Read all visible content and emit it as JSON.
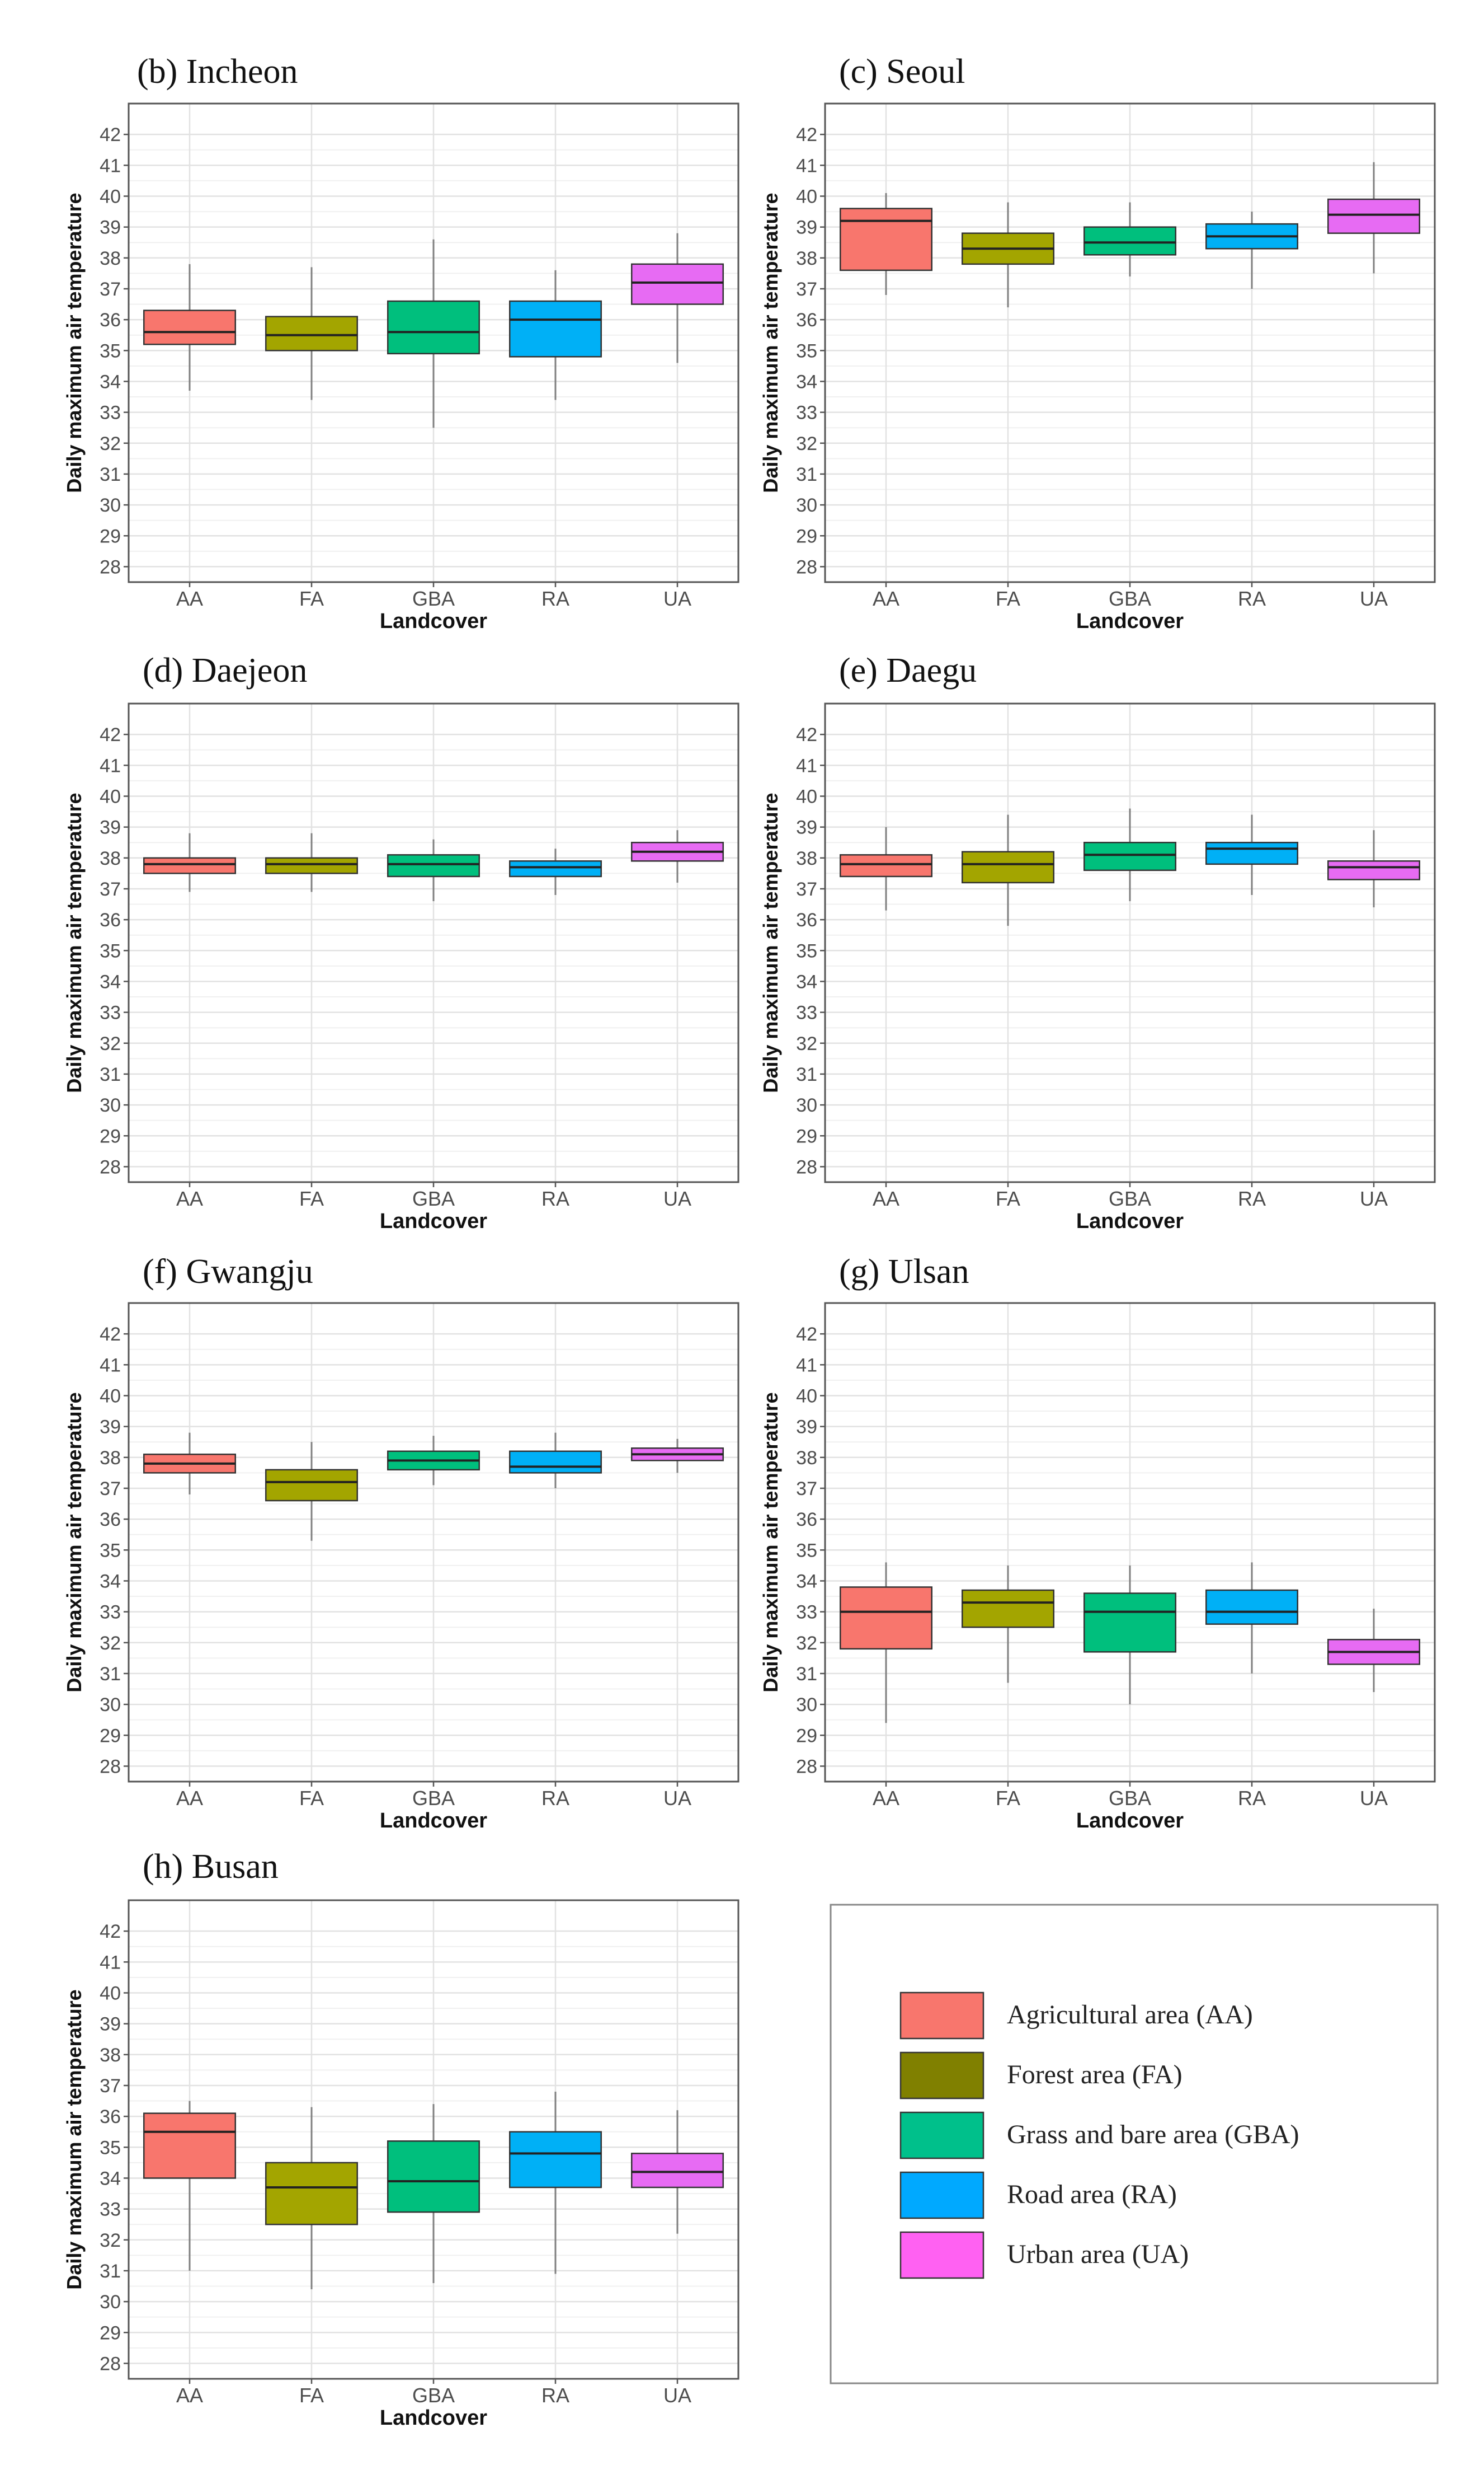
{
  "y_axis": {
    "label": "Daily maximum air temperature",
    "ticks": [
      28,
      29,
      30,
      31,
      32,
      33,
      34,
      35,
      36,
      37,
      38,
      39,
      40,
      41,
      42
    ]
  },
  "x_axis": {
    "label": "Landcover"
  },
  "legend": {
    "items": [
      {
        "key": "AA",
        "label": "Agricultural area (AA)",
        "color": "#F8766D"
      },
      {
        "key": "FA",
        "label": "Forest area (FA)",
        "color": "#808000"
      },
      {
        "key": "GBA",
        "label": "Grass and bare area (GBA)",
        "color": "#00C08B"
      },
      {
        "key": "RA",
        "label": "Road area (RA)",
        "color": "#00A9FF"
      },
      {
        "key": "UA",
        "label": "Urban area (UA)",
        "color": "#FF61F2"
      }
    ]
  },
  "colors": {
    "AA": "#F8766D",
    "FA": "#A3A500",
    "GBA": "#00BF7D",
    "RA": "#00B0F6",
    "UA": "#E76BF3"
  },
  "chart_data": [
    {
      "type": "boxplot",
      "panel": "(b) Incheon",
      "categories": [
        "AA",
        "FA",
        "GBA",
        "RA",
        "UA"
      ],
      "ylim": [
        27.5,
        43
      ],
      "xlabel": "Landcover",
      "ylabel": "Daily maximum air temperature",
      "boxes": [
        {
          "category": "AA",
          "min": 33.7,
          "q1": 35.2,
          "median": 35.6,
          "q3": 36.3,
          "max": 37.8
        },
        {
          "category": "FA",
          "min": 33.4,
          "q1": 35.0,
          "median": 35.5,
          "q3": 36.1,
          "max": 37.7
        },
        {
          "category": "GBA",
          "min": 32.5,
          "q1": 34.9,
          "median": 35.6,
          "q3": 36.6,
          "max": 38.6
        },
        {
          "category": "RA",
          "min": 33.4,
          "q1": 34.8,
          "median": 36.0,
          "q3": 36.6,
          "max": 37.6
        },
        {
          "category": "UA",
          "min": 34.6,
          "q1": 36.5,
          "median": 37.2,
          "q3": 37.8,
          "max": 38.8
        }
      ]
    },
    {
      "type": "boxplot",
      "panel": "(c) Seoul",
      "categories": [
        "AA",
        "FA",
        "GBA",
        "RA",
        "UA"
      ],
      "ylim": [
        27.5,
        43
      ],
      "xlabel": "Landcover",
      "ylabel": "Daily maximum air temperature",
      "boxes": [
        {
          "category": "AA",
          "min": 36.8,
          "q1": 37.6,
          "median": 39.2,
          "q3": 39.6,
          "max": 40.1
        },
        {
          "category": "FA",
          "min": 36.4,
          "q1": 37.8,
          "median": 38.3,
          "q3": 38.8,
          "max": 39.8
        },
        {
          "category": "GBA",
          "min": 37.4,
          "q1": 38.1,
          "median": 38.5,
          "q3": 39.0,
          "max": 39.8
        },
        {
          "category": "RA",
          "min": 37.0,
          "q1": 38.3,
          "median": 38.7,
          "q3": 39.1,
          "max": 39.5
        },
        {
          "category": "UA",
          "min": 37.5,
          "q1": 38.8,
          "median": 39.4,
          "q3": 39.9,
          "max": 41.1
        }
      ]
    },
    {
      "type": "boxplot",
      "panel": "(d) Daejeon",
      "categories": [
        "AA",
        "FA",
        "GBA",
        "RA",
        "UA"
      ],
      "ylim": [
        27.5,
        43
      ],
      "xlabel": "Landcover",
      "ylabel": "Daily maximum air temperature",
      "boxes": [
        {
          "category": "AA",
          "min": 36.9,
          "q1": 37.5,
          "median": 37.8,
          "q3": 38.0,
          "max": 38.8
        },
        {
          "category": "FA",
          "min": 36.9,
          "q1": 37.5,
          "median": 37.8,
          "q3": 38.0,
          "max": 38.8
        },
        {
          "category": "GBA",
          "min": 36.6,
          "q1": 37.4,
          "median": 37.8,
          "q3": 38.1,
          "max": 38.6
        },
        {
          "category": "RA",
          "min": 36.8,
          "q1": 37.4,
          "median": 37.7,
          "q3": 37.9,
          "max": 38.3
        },
        {
          "category": "UA",
          "min": 37.2,
          "q1": 37.9,
          "median": 38.2,
          "q3": 38.5,
          "max": 38.9
        }
      ]
    },
    {
      "type": "boxplot",
      "panel": "(e) Daegu",
      "categories": [
        "AA",
        "FA",
        "GBA",
        "RA",
        "UA"
      ],
      "ylim": [
        27.5,
        43
      ],
      "xlabel": "Landcover",
      "ylabel": "Daily maximum air temperature",
      "boxes": [
        {
          "category": "AA",
          "min": 36.3,
          "q1": 37.4,
          "median": 37.8,
          "q3": 38.1,
          "max": 39.0
        },
        {
          "category": "FA",
          "min": 35.8,
          "q1": 37.2,
          "median": 37.8,
          "q3": 38.2,
          "max": 39.4
        },
        {
          "category": "GBA",
          "min": 36.6,
          "q1": 37.6,
          "median": 38.1,
          "q3": 38.5,
          "max": 39.6
        },
        {
          "category": "RA",
          "min": 36.8,
          "q1": 37.8,
          "median": 38.3,
          "q3": 38.5,
          "max": 39.4
        },
        {
          "category": "UA",
          "min": 36.4,
          "q1": 37.3,
          "median": 37.7,
          "q3": 37.9,
          "max": 38.9
        }
      ]
    },
    {
      "type": "boxplot",
      "panel": "(f) Gwangju",
      "categories": [
        "AA",
        "FA",
        "GBA",
        "RA",
        "UA"
      ],
      "ylim": [
        27.5,
        43
      ],
      "xlabel": "Landcover",
      "ylabel": "Daily maximum air temperature",
      "boxes": [
        {
          "category": "AA",
          "min": 36.8,
          "q1": 37.5,
          "median": 37.8,
          "q3": 38.1,
          "max": 38.8
        },
        {
          "category": "FA",
          "min": 35.3,
          "q1": 36.6,
          "median": 37.2,
          "q3": 37.6,
          "max": 38.5
        },
        {
          "category": "GBA",
          "min": 37.1,
          "q1": 37.6,
          "median": 37.9,
          "q3": 38.2,
          "max": 38.7
        },
        {
          "category": "RA",
          "min": 37.0,
          "q1": 37.5,
          "median": 37.7,
          "q3": 38.2,
          "max": 38.8
        },
        {
          "category": "UA",
          "min": 37.5,
          "q1": 37.9,
          "median": 38.1,
          "q3": 38.3,
          "max": 38.6
        }
      ]
    },
    {
      "type": "boxplot",
      "panel": "(g) Ulsan",
      "categories": [
        "AA",
        "FA",
        "GBA",
        "RA",
        "UA"
      ],
      "ylim": [
        27.5,
        43
      ],
      "xlabel": "Landcover",
      "ylabel": "Daily maximum air temperature",
      "boxes": [
        {
          "category": "AA",
          "min": 29.4,
          "q1": 31.8,
          "median": 33.0,
          "q3": 33.8,
          "max": 34.6
        },
        {
          "category": "FA",
          "min": 30.7,
          "q1": 32.5,
          "median": 33.3,
          "q3": 33.7,
          "max": 34.5
        },
        {
          "category": "GBA",
          "min": 30.0,
          "q1": 31.7,
          "median": 33.0,
          "q3": 33.6,
          "max": 34.5
        },
        {
          "category": "RA",
          "min": 31.0,
          "q1": 32.6,
          "median": 33.0,
          "q3": 33.7,
          "max": 34.6
        },
        {
          "category": "UA",
          "min": 30.4,
          "q1": 31.3,
          "median": 31.7,
          "q3": 32.1,
          "max": 33.1
        }
      ]
    },
    {
      "type": "boxplot",
      "panel": "(h) Busan",
      "categories": [
        "AA",
        "FA",
        "GBA",
        "RA",
        "UA"
      ],
      "ylim": [
        27.5,
        43
      ],
      "xlabel": "Landcover",
      "ylabel": "Daily maximum air temperature",
      "boxes": [
        {
          "category": "AA",
          "min": 31.0,
          "q1": 34.0,
          "median": 35.5,
          "q3": 36.1,
          "max": 36.5
        },
        {
          "category": "FA",
          "min": 30.4,
          "q1": 32.5,
          "median": 33.7,
          "q3": 34.5,
          "max": 36.3
        },
        {
          "category": "GBA",
          "min": 30.6,
          "q1": 32.9,
          "median": 33.9,
          "q3": 35.2,
          "max": 36.4
        },
        {
          "category": "RA",
          "min": 30.9,
          "q1": 33.7,
          "median": 34.8,
          "q3": 35.5,
          "max": 36.8
        },
        {
          "category": "UA",
          "min": 32.2,
          "q1": 33.7,
          "median": 34.2,
          "q3": 34.8,
          "max": 36.2
        }
      ]
    }
  ]
}
